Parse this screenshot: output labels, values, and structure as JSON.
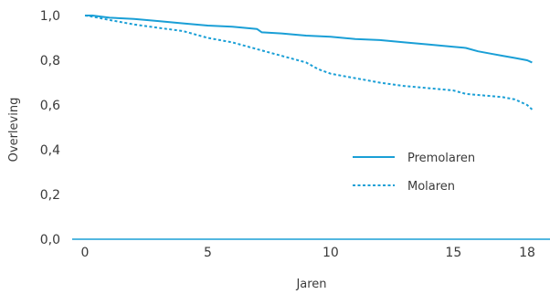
{
  "chart_data": {
    "type": "line",
    "title": "",
    "xlabel": "Jaren",
    "ylabel": "Overleving",
    "xlim": [
      -1,
      19
    ],
    "ylim": [
      0,
      1.0
    ],
    "x_ticks": [
      0,
      5,
      10,
      15,
      18
    ],
    "x_tick_labels": [
      "0",
      "5",
      "10",
      "15",
      "18"
    ],
    "y_ticks": [
      0,
      0.2,
      0.4,
      0.6,
      0.8,
      1.0
    ],
    "y_tick_labels": [
      "0,0",
      "0,2",
      "0,4",
      "0,6",
      "0,8",
      "1,0"
    ],
    "grid": false,
    "legend_position": "right",
    "series": [
      {
        "name": "Premolaren",
        "style": "solid",
        "color": "#1a9fd6",
        "x": [
          0,
          0.3,
          1,
          2,
          3,
          4,
          5,
          6,
          6.5,
          7,
          7.2,
          8,
          9,
          10,
          10.5,
          11,
          12,
          13,
          14,
          15,
          15.5,
          16,
          16.5,
          17,
          17.5,
          18,
          18.2
        ],
        "y": [
          1.0,
          1.0,
          0.99,
          0.985,
          0.975,
          0.965,
          0.955,
          0.95,
          0.945,
          0.94,
          0.925,
          0.92,
          0.91,
          0.905,
          0.9,
          0.895,
          0.89,
          0.88,
          0.87,
          0.86,
          0.855,
          0.84,
          0.83,
          0.82,
          0.81,
          0.8,
          0.79
        ]
      },
      {
        "name": "Molaren",
        "style": "dashed",
        "color": "#1a9fd6",
        "x": [
          0,
          0.3,
          1,
          2,
          3,
          4,
          5,
          6,
          7,
          8,
          9,
          9.5,
          10,
          10.5,
          11,
          12,
          13,
          14,
          14.5,
          15,
          15.5,
          16,
          16.5,
          17,
          17.5,
          18,
          18.2
        ],
        "y": [
          1.0,
          0.995,
          0.98,
          0.96,
          0.945,
          0.93,
          0.9,
          0.88,
          0.85,
          0.82,
          0.79,
          0.76,
          0.74,
          0.73,
          0.72,
          0.7,
          0.685,
          0.675,
          0.67,
          0.665,
          0.65,
          0.645,
          0.64,
          0.635,
          0.625,
          0.6,
          0.58
        ]
      }
    ]
  }
}
